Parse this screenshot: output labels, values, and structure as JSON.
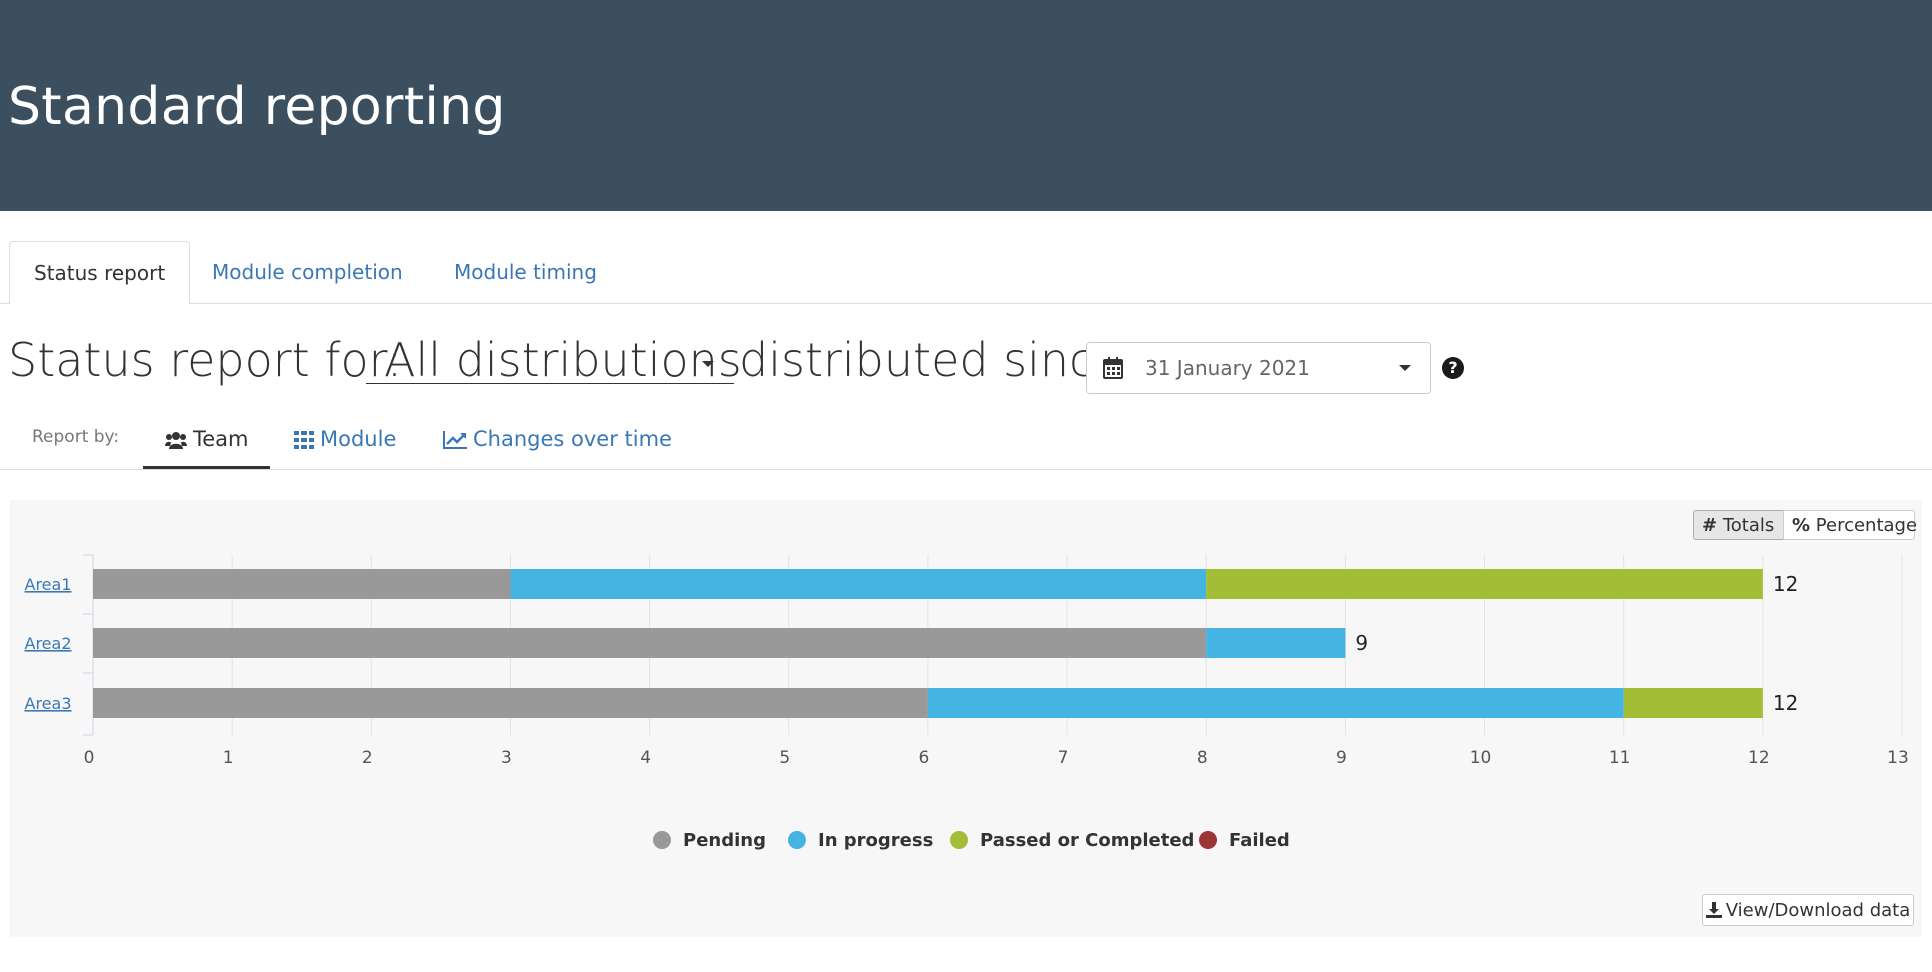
{
  "header": {
    "title": "Standard reporting"
  },
  "tabs": [
    {
      "label": "Status report",
      "active": true
    },
    {
      "label": "Module completion",
      "active": false
    },
    {
      "label": "Module timing",
      "active": false
    }
  ],
  "status": {
    "prefix": "Status report for:",
    "distribution": "All distributions",
    "since_text": "distributed since",
    "date": "31 January 2021"
  },
  "report_by": {
    "label": "Report by:",
    "items": [
      {
        "label": "Team",
        "icon": "users-icon",
        "active": true
      },
      {
        "label": "Module",
        "icon": "grid-icon",
        "active": false
      },
      {
        "label": "Changes over time",
        "icon": "line-chart-icon",
        "active": false
      }
    ]
  },
  "toggle": {
    "totals": "Totals",
    "percentage": "Percentage",
    "active": "totals"
  },
  "download": {
    "label": "View/Download data"
  },
  "colors": {
    "header_bg": "#3b4f5e",
    "link": "#3a78b5",
    "pending": "#999999",
    "in_progress": "#45b4e3",
    "passed": "#a4bd36",
    "failed": "#9e3434"
  },
  "chart_data": {
    "type": "bar",
    "orientation": "horizontal",
    "stacked": true,
    "categories": [
      "Area1",
      "Area2",
      "Area3"
    ],
    "series": [
      {
        "name": "Pending",
        "color": "#999999",
        "values": [
          3,
          8,
          6
        ]
      },
      {
        "name": "In progress",
        "color": "#45b4e3",
        "values": [
          5,
          1,
          5
        ]
      },
      {
        "name": "Passed or Completed",
        "color": "#a4bd36",
        "values": [
          4,
          0,
          1
        ]
      },
      {
        "name": "Failed",
        "color": "#9e3434",
        "values": [
          0,
          0,
          0
        ]
      }
    ],
    "totals": [
      12,
      9,
      12
    ],
    "xlim": [
      0,
      13
    ],
    "xticks": [
      "0",
      "1",
      "2",
      "3",
      "4",
      "5",
      "6",
      "7",
      "8",
      "9",
      "10",
      "11",
      "12",
      "13"
    ],
    "grid": true,
    "legend": "bottom-center"
  }
}
